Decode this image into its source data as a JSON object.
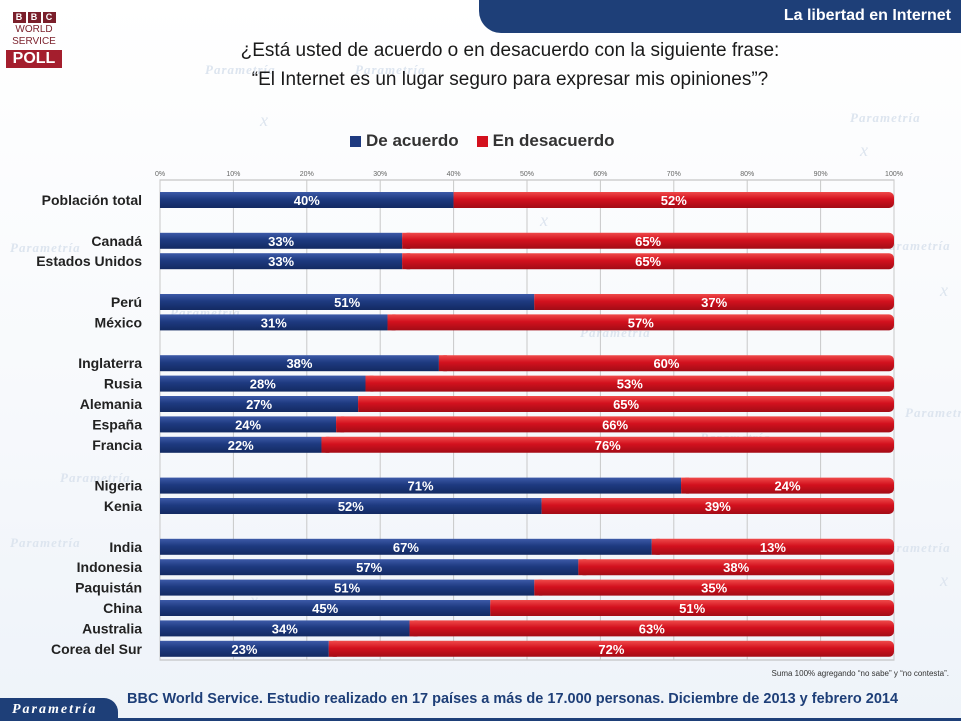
{
  "header": {
    "banner_title": "La libertad en Internet",
    "logo": {
      "bbc_letters": [
        "B",
        "B",
        "C"
      ],
      "line1": "WORLD",
      "line2": "SERVICE",
      "poll": "POLL"
    }
  },
  "question": {
    "line1": "¿Está usted de acuerdo o en desacuerdo con la siguiente frase:",
    "line2": "“El Internet es un lugar seguro para expresar mis opiniones”?"
  },
  "chart_data": {
    "type": "bar",
    "orientation": "horizontal",
    "stacked": true,
    "xlim": [
      0,
      100
    ],
    "x_ticks": [
      "0%",
      "10%",
      "20%",
      "30%",
      "40%",
      "50%",
      "60%",
      "70%",
      "80%",
      "90%",
      "100%"
    ],
    "grid": true,
    "legend_placement": "top",
    "categories": [
      "Población total",
      "Canadá",
      "Estados Unidos",
      "Perú",
      "México",
      "Inglaterra",
      "Rusia",
      "Alemania",
      "España",
      "Francia",
      "Nigeria",
      "Kenia",
      "India",
      "Indonesia",
      "Paquistán",
      "China",
      "Australia",
      "Corea del Sur"
    ],
    "groups": [
      [
        0
      ],
      [
        1,
        2
      ],
      [
        3,
        4
      ],
      [
        5,
        6,
        7,
        8,
        9
      ],
      [
        10,
        11
      ],
      [
        12,
        13,
        14,
        15,
        16,
        17
      ]
    ],
    "series": [
      {
        "name": "De acuerdo",
        "color": "#1e3a80",
        "values": [
          40,
          33,
          33,
          51,
          31,
          38,
          28,
          27,
          24,
          22,
          71,
          52,
          67,
          57,
          51,
          45,
          34,
          23
        ]
      },
      {
        "name": "En desacuerdo",
        "color": "#d3111e",
        "values": [
          52,
          65,
          65,
          37,
          57,
          60,
          53,
          65,
          66,
          76,
          24,
          39,
          13,
          38,
          35,
          51,
          63,
          72
        ]
      }
    ]
  },
  "footnote": "Suma 100%  agregando “no sabe” y “no contesta”.",
  "footer": {
    "brand": "Parametría",
    "source": "BBC World Service. Estudio realizado en 17 países  a más de 17.000 personas. Diciembre de 2013 y febrero 2014"
  },
  "watermark_text": "Parametría"
}
